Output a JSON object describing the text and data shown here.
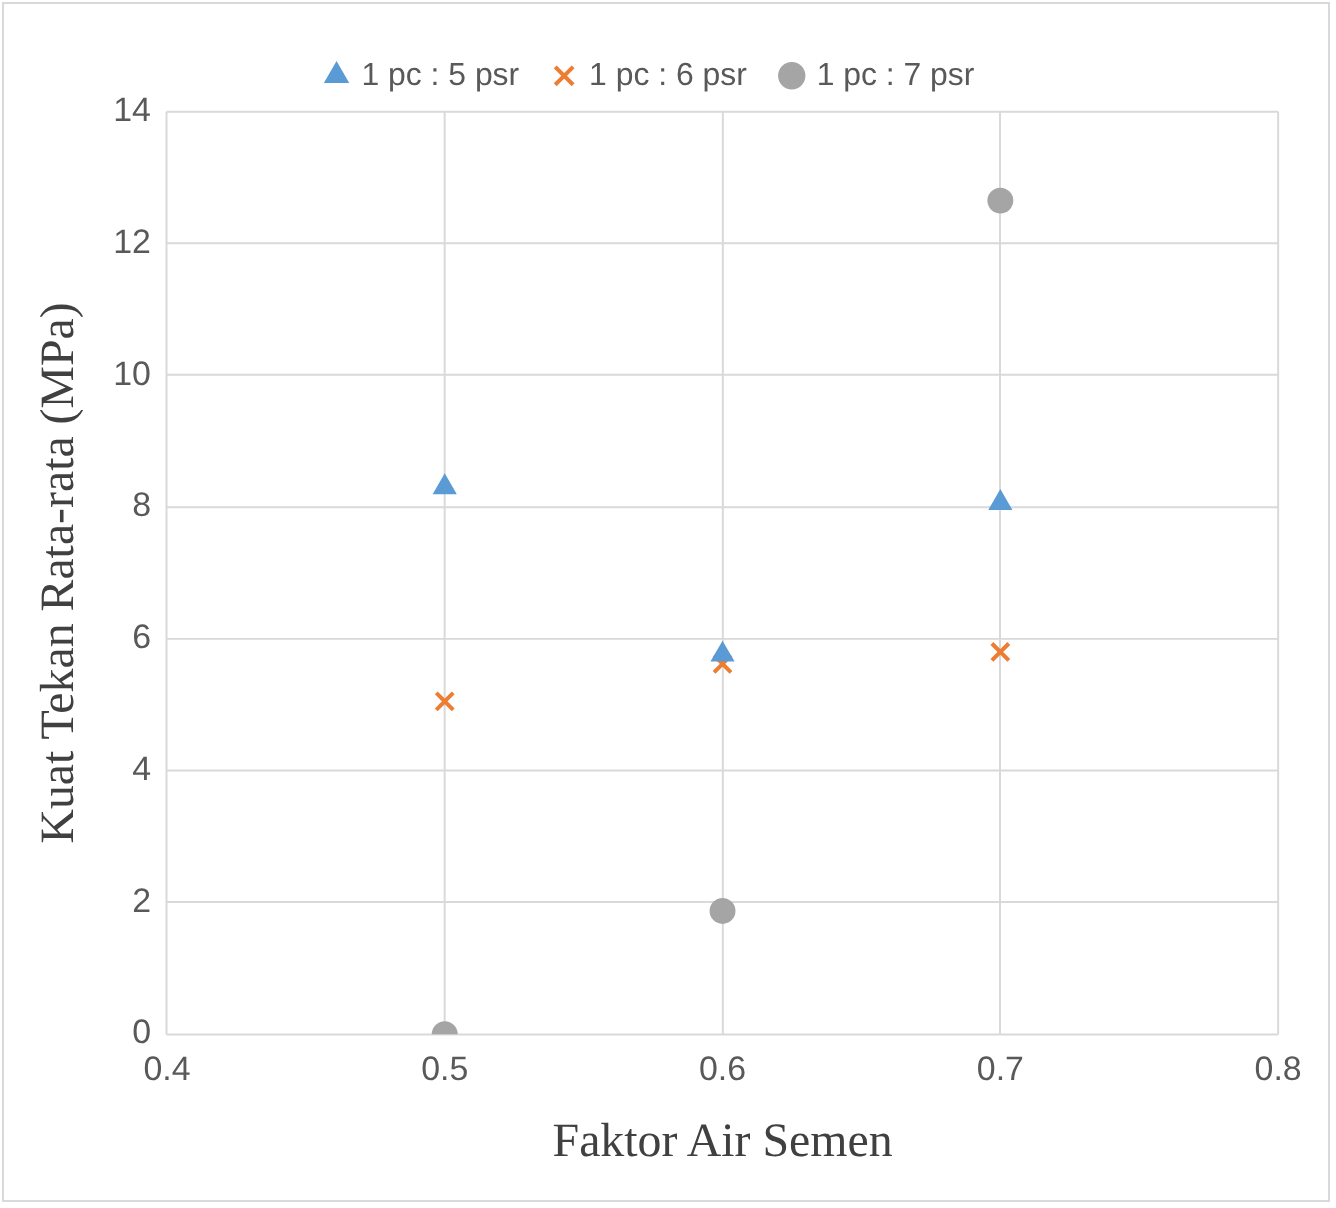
{
  "chart_data": {
    "type": "scatter",
    "xlabel": "Faktor Air Semen",
    "ylabel": "Kuat Tekan Rata-rata (MPa)",
    "x": [
      0.5,
      0.6,
      0.7
    ],
    "series": [
      {
        "name": "1 pc : 5 psr",
        "color": "#5b9bd5",
        "marker": "triangle",
        "values": [
          8.3,
          5.76,
          8.06
        ]
      },
      {
        "name": "1 pc : 6 psr",
        "color": "#ed7d31",
        "marker": "cross",
        "values": [
          5.05,
          5.62,
          5.8
        ]
      },
      {
        "name": "1 pc : 7 psr",
        "color": "#a5a5a5",
        "marker": "circle",
        "values": [
          0,
          1.87,
          12.65
        ]
      }
    ],
    "xlim": [
      0.4,
      0.8
    ],
    "xticks": [
      0.4,
      0.5,
      0.6,
      0.7,
      0.8
    ],
    "ylim": [
      0,
      14
    ],
    "yticks": [
      0,
      2,
      4,
      6,
      8,
      10,
      12,
      14
    ],
    "grid": true,
    "legend": "top"
  }
}
